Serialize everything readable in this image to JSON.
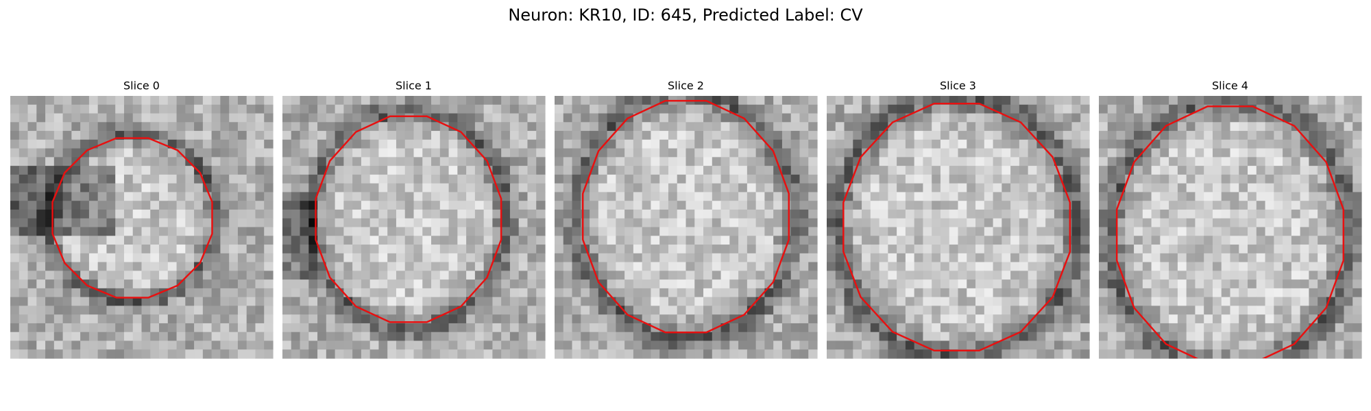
{
  "title": "Neuron: KR10, ID: 645, Predicted Label: CV",
  "panels": [
    {
      "label": "Slice 0"
    },
    {
      "label": "Slice 1"
    },
    {
      "label": "Slice 2"
    },
    {
      "label": "Slice 3"
    },
    {
      "label": "Slice 4"
    }
  ]
}
